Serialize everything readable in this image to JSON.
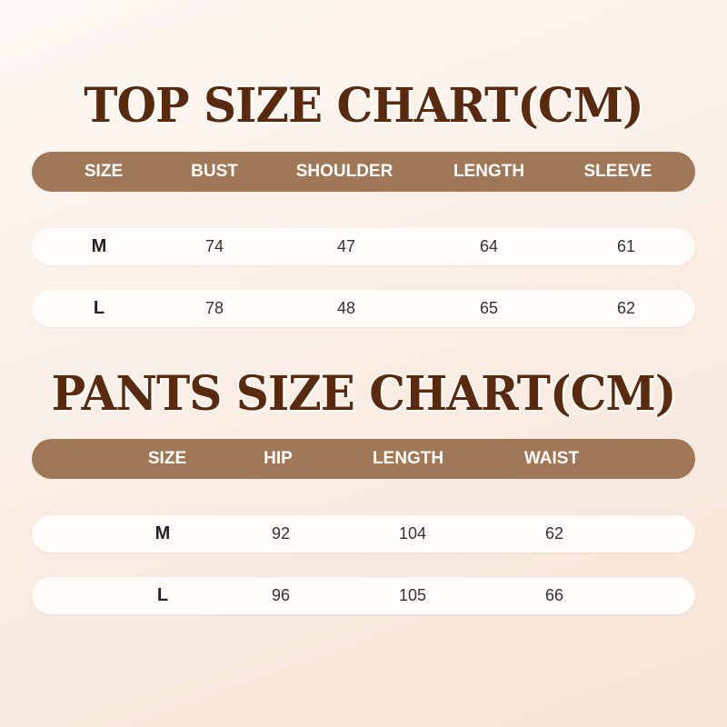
{
  "top": {
    "title": "TOP SIZE CHART(CM)",
    "headers": [
      "SIZE",
      "BUST",
      "SHOULDER",
      "LENGTH",
      "SLEEVE"
    ],
    "rows": [
      [
        "M",
        "74",
        "47",
        "64",
        "61"
      ],
      [
        "L",
        "78",
        "48",
        "65",
        "62"
      ]
    ]
  },
  "pants": {
    "title": "PANTS SIZE CHART(CM)",
    "headers": [
      "SIZE",
      "HIP",
      "LENGTH",
      "WAIST"
    ],
    "rows": [
      [
        "M",
        "92",
        "104",
        "62"
      ],
      [
        "L",
        "96",
        "105",
        "66"
      ]
    ]
  },
  "colors": {
    "title": "#5a2a0e",
    "header": "#a07858"
  }
}
